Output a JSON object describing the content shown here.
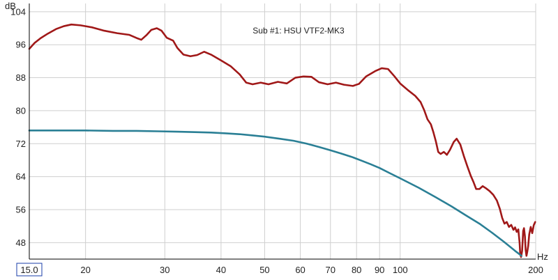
{
  "chart_data": {
    "type": "line",
    "title": "Sub #1: HSU VTF2-MK3",
    "xlabel": "Hz",
    "ylabel": "dB",
    "x_scale": "log",
    "xlim": [
      15,
      200
    ],
    "ylim": [
      44,
      106
    ],
    "grid": true,
    "x_tick_labels": [
      {
        "value": 15,
        "label": "15.0",
        "boxed": true
      },
      {
        "value": 20,
        "label": "20"
      },
      {
        "value": 30,
        "label": "30"
      },
      {
        "value": 40,
        "label": "40"
      },
      {
        "value": 50,
        "label": "50"
      },
      {
        "value": 60,
        "label": "60"
      },
      {
        "value": 70,
        "label": "70"
      },
      {
        "value": 80,
        "label": "80"
      },
      {
        "value": 90,
        "label": "90"
      },
      {
        "value": 100,
        "label": "100"
      },
      {
        "value": 200,
        "label": "200"
      }
    ],
    "x_gridlines": [
      20,
      30,
      40,
      50,
      60,
      70,
      80,
      90,
      100,
      200
    ],
    "y_ticks": [
      48,
      56,
      64,
      72,
      80,
      88,
      96,
      104
    ],
    "series": [
      {
        "color": "#a01818",
        "points": [
          [
            15.0,
            95.0
          ],
          [
            15.4,
            96.4
          ],
          [
            15.9,
            97.6
          ],
          [
            16.5,
            98.7
          ],
          [
            17.2,
            99.8
          ],
          [
            17.9,
            100.5
          ],
          [
            18.6,
            100.9
          ],
          [
            19.5,
            100.7
          ],
          [
            20.7,
            100.2
          ],
          [
            22.0,
            99.4
          ],
          [
            23.5,
            98.8
          ],
          [
            25.0,
            98.4
          ],
          [
            26.0,
            97.6
          ],
          [
            26.6,
            97.2
          ],
          [
            27.3,
            98.3
          ],
          [
            28.0,
            99.6
          ],
          [
            28.8,
            100.0
          ],
          [
            29.5,
            99.4
          ],
          [
            30.3,
            97.7
          ],
          [
            31.3,
            97.0
          ],
          [
            32.0,
            95.2
          ],
          [
            33.0,
            93.6
          ],
          [
            34.2,
            93.2
          ],
          [
            35.4,
            93.5
          ],
          [
            36.7,
            94.3
          ],
          [
            38.0,
            93.6
          ],
          [
            40.0,
            92.2
          ],
          [
            42.0,
            90.8
          ],
          [
            44.0,
            88.8
          ],
          [
            45.5,
            86.8
          ],
          [
            47.0,
            86.4
          ],
          [
            49.0,
            86.8
          ],
          [
            51.0,
            86.4
          ],
          [
            53.5,
            87.0
          ],
          [
            56.0,
            86.6
          ],
          [
            58.5,
            88.0
          ],
          [
            61.0,
            88.3
          ],
          [
            63.5,
            88.2
          ],
          [
            66.0,
            86.9
          ],
          [
            69.0,
            86.4
          ],
          [
            72.0,
            86.8
          ],
          [
            75.0,
            86.3
          ],
          [
            78.5,
            86.0
          ],
          [
            81.0,
            86.5
          ],
          [
            84.0,
            88.3
          ],
          [
            88.0,
            89.6
          ],
          [
            91.0,
            90.3
          ],
          [
            94.0,
            90.1
          ],
          [
            97.0,
            88.4
          ],
          [
            100.0,
            86.6
          ],
          [
            104.0,
            85.0
          ],
          [
            108.0,
            83.6
          ],
          [
            111.0,
            82.1
          ],
          [
            113.0,
            80.2
          ],
          [
            115.0,
            77.9
          ],
          [
            117.0,
            76.7
          ],
          [
            118.5,
            74.8
          ],
          [
            120.0,
            72.6
          ],
          [
            121.5,
            70.0
          ],
          [
            123.0,
            69.5
          ],
          [
            125.0,
            70.0
          ],
          [
            127.0,
            69.3
          ],
          [
            129.0,
            70.5
          ],
          [
            131.5,
            72.4
          ],
          [
            133.5,
            73.2
          ],
          [
            136.0,
            71.8
          ],
          [
            138.5,
            69.0
          ],
          [
            141.0,
            66.5
          ],
          [
            143.5,
            64.2
          ],
          [
            145.5,
            62.7
          ],
          [
            147.5,
            61.0
          ],
          [
            150.0,
            61.0
          ],
          [
            152.5,
            61.7
          ],
          [
            155.0,
            61.2
          ],
          [
            158.0,
            60.5
          ],
          [
            161.0,
            59.6
          ],
          [
            164.0,
            58.2
          ],
          [
            166.5,
            56.2
          ],
          [
            168.5,
            54.0
          ],
          [
            170.5,
            52.6
          ],
          [
            172.5,
            53.0
          ],
          [
            174.5,
            51.8
          ],
          [
            176.5,
            52.3
          ],
          [
            178.5,
            51.1
          ],
          [
            180.0,
            51.7
          ],
          [
            181.5,
            50.6
          ],
          [
            183.0,
            51.2
          ],
          [
            184.2,
            48.0
          ],
          [
            184.8,
            45.2
          ],
          [
            185.6,
            44.5
          ],
          [
            186.6,
            46.0
          ],
          [
            187.6,
            50.8
          ],
          [
            188.4,
            51.5
          ],
          [
            189.3,
            49.5
          ],
          [
            190.0,
            46.2
          ],
          [
            190.8,
            44.8
          ],
          [
            191.6,
            45.8
          ],
          [
            192.5,
            47.2
          ],
          [
            193.5,
            50.0
          ],
          [
            195.0,
            51.8
          ],
          [
            196.5,
            50.3
          ],
          [
            198.0,
            52.2
          ],
          [
            199.5,
            53.0
          ]
        ]
      },
      {
        "color": "#2a7f95",
        "points": [
          [
            15.0,
            75.2
          ],
          [
            17.0,
            75.2
          ],
          [
            20.0,
            75.2
          ],
          [
            23.0,
            75.1
          ],
          [
            26.0,
            75.1
          ],
          [
            29.0,
            75.0
          ],
          [
            32.0,
            74.9
          ],
          [
            35.0,
            74.8
          ],
          [
            38.0,
            74.7
          ],
          [
            41.0,
            74.5
          ],
          [
            44.0,
            74.3
          ],
          [
            47.0,
            74.0
          ],
          [
            50.0,
            73.7
          ],
          [
            54.0,
            73.2
          ],
          [
            58.0,
            72.7
          ],
          [
            62.0,
            72.0
          ],
          [
            66.0,
            71.2
          ],
          [
            70.0,
            70.4
          ],
          [
            74.0,
            69.6
          ],
          [
            78.0,
            68.8
          ],
          [
            82.0,
            67.9
          ],
          [
            86.0,
            67.0
          ],
          [
            90.0,
            66.1
          ],
          [
            95.0,
            64.8
          ],
          [
            100.0,
            63.6
          ],
          [
            110.0,
            61.3
          ],
          [
            120.0,
            59.0
          ],
          [
            130.0,
            56.8
          ],
          [
            140.0,
            54.6
          ],
          [
            150.0,
            52.6
          ],
          [
            160.0,
            50.4
          ],
          [
            170.0,
            48.2
          ],
          [
            180.0,
            46.0
          ],
          [
            186.0,
            44.8
          ]
        ]
      }
    ]
  }
}
